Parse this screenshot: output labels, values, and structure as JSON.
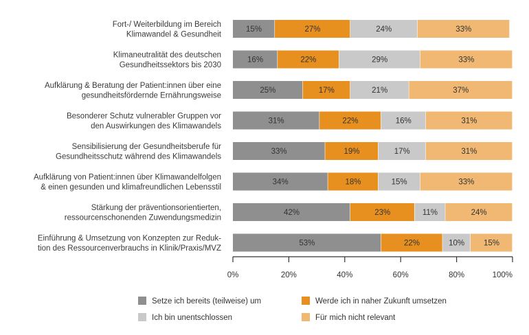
{
  "chart_data": {
    "type": "bar",
    "orientation": "horizontal",
    "stacked": true,
    "categories": [
      [
        "Fort-/ Weiterbildung im Bereich",
        "Klimawandel & Gesundheit"
      ],
      [
        "Klimaneutralität des deutschen",
        "Gesundheitssektors bis 2030"
      ],
      [
        "Aufklärung & Beratung der Patient:innen über eine",
        "gesundheitsfördernde Ernährungsweise"
      ],
      [
        "Besonderer Schutz vulnerabler Gruppen vor",
        "den Auswirkungen des Klimawandels"
      ],
      [
        "Sensibilisierung der Gesundheitsberufe für",
        "Gesundheitsschutz während des Klimawandels"
      ],
      [
        "Aufklärung von Patient:innen über Klimawandelfolgen",
        "& einen gesunden und klimafreundlichen Lebensstil"
      ],
      [
        "Stärkung der präventionsorientierten,",
        "ressourcenschonenden Zuwendungsmedizin"
      ],
      [
        "Einführung & Umsetzung von Konzepten zur Reduk-",
        "tion des Ressourcenverbrauchs in Klinik/Praxis/MVZ"
      ]
    ],
    "series": [
      {
        "name": "Setze ich bereits (teilweise) um",
        "color": "#8f8f8f",
        "values": [
          15,
          16,
          25,
          31,
          33,
          34,
          42,
          53
        ]
      },
      {
        "name": "Werde ich in naher Zukunft umsetzen",
        "color": "#e8901f",
        "values": [
          27,
          22,
          17,
          22,
          19,
          18,
          23,
          22
        ]
      },
      {
        "name": "Ich bin unentschlossen",
        "color": "#c9c9c9",
        "values": [
          24,
          29,
          21,
          16,
          17,
          15,
          11,
          10
        ]
      },
      {
        "name": "Für mich nicht relevant",
        "color": "#f0b872",
        "values": [
          33,
          33,
          37,
          31,
          31,
          33,
          24,
          15
        ]
      }
    ],
    "value_suffix": "%",
    "xlim": [
      0,
      100
    ],
    "xticks": [
      "0%",
      "20%",
      "40%",
      "60%",
      "80%",
      "100%"
    ],
    "legend_position": "bottom",
    "grid": false
  }
}
